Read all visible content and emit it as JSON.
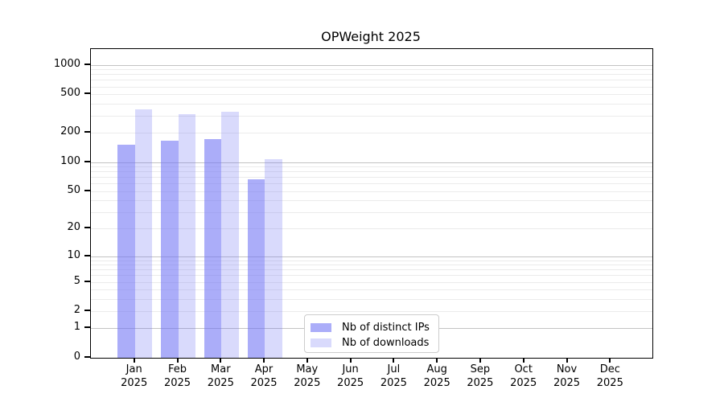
{
  "chart_data": {
    "type": "bar",
    "title": "OPWeight 2025",
    "x_tick_second_line": "2025",
    "categories": [
      "Jan",
      "Feb",
      "Mar",
      "Apr",
      "May",
      "Jun",
      "Jul",
      "Aug",
      "Sep",
      "Oct",
      "Nov",
      "Dec"
    ],
    "series": [
      {
        "name": "Nb of distinct IPs",
        "base_color": "#6e71f5",
        "alpha": 0.58,
        "values": [
          150,
          165,
          172,
          66,
          0,
          0,
          0,
          0,
          0,
          0,
          0,
          0
        ]
      },
      {
        "name": "Nb of downloads",
        "base_color": "#6e71f5",
        "alpha": 0.26,
        "values": [
          350,
          310,
          330,
          108,
          0,
          0,
          0,
          0,
          0,
          0,
          0,
          0
        ]
      }
    ],
    "y_scale": "log10(1+value)",
    "ylim": [
      0,
      1450
    ],
    "y_ticks": [
      0,
      1,
      2,
      5,
      10,
      20,
      50,
      100,
      200,
      500,
      1000
    ],
    "grid": {
      "major_values": [
        1,
        10,
        100,
        1000
      ],
      "minor_values": [
        2,
        3,
        4,
        5,
        6,
        7,
        8,
        9,
        20,
        30,
        40,
        50,
        60,
        70,
        80,
        90,
        200,
        300,
        400,
        500,
        600,
        700,
        800,
        900
      ],
      "major_color": "#c3c3c3",
      "minor_color": "#ebebeb"
    },
    "legend": {
      "location": "lower center",
      "entries": [
        "Nb of distinct IPs",
        "Nb of downloads"
      ]
    },
    "colors": {
      "axis": "#000000",
      "background": "#ffffff"
    }
  }
}
